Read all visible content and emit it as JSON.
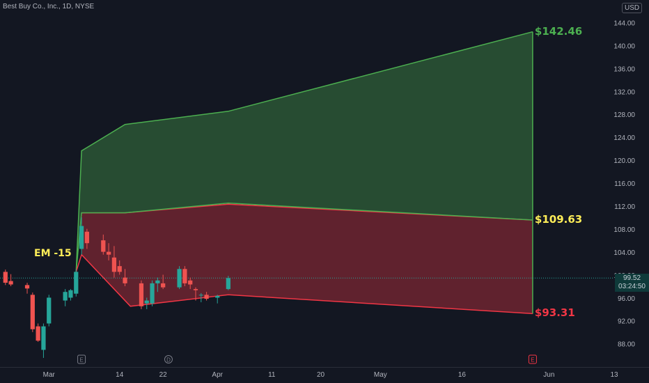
{
  "header": {
    "title": "Best Buy Co., Inc., 1D, NYSE",
    "currency": "USD"
  },
  "current_price": {
    "value": "99.52",
    "countdown": "03:24:50"
  },
  "labels": {
    "em": "EM -15",
    "upper": "$142.46",
    "mid": "$109.63",
    "lower": "$93.31"
  },
  "colors": {
    "green": "#4caf50",
    "red": "#f23645",
    "yellow": "#ffee58",
    "up": "#26a69a",
    "down": "#ef5350"
  },
  "chart_data": {
    "type": "candlestick",
    "y_axis": {
      "ticks": [
        88,
        92,
        96,
        100,
        104,
        108,
        112,
        116,
        120,
        124,
        128,
        132,
        136,
        140,
        144
      ],
      "range": [
        84.5,
        148
      ]
    },
    "x_axis": {
      "ticks": [
        {
          "label": "Mar",
          "date": "2024-03-01"
        },
        {
          "label": "14",
          "date": "2024-03-14"
        },
        {
          "label": "22",
          "date": "2024-03-22"
        },
        {
          "label": "Apr",
          "date": "2024-04-01"
        },
        {
          "label": "11",
          "date": "2024-04-11"
        },
        {
          "label": "20",
          "date": "2024-04-20"
        },
        {
          "label": "May",
          "date": "2024-05-01"
        },
        {
          "label": "16",
          "date": "2024-05-16"
        },
        {
          "label": "Jun",
          "date": "2024-06-01"
        },
        {
          "label": "13",
          "date": "2024-06-13"
        }
      ],
      "range": [
        "2024-02-21",
        "2024-06-13"
      ]
    },
    "candles": [
      {
        "date": "2024-02-22",
        "o": 100.6,
        "h": 101.0,
        "l": 98.3,
        "c": 98.7
      },
      {
        "date": "2024-02-23",
        "o": 99.0,
        "h": 100.2,
        "l": 98.1,
        "c": 98.4
      },
      {
        "date": "2024-02-26",
        "o": 98.3,
        "h": 98.7,
        "l": 96.8,
        "c": 97.7
      },
      {
        "date": "2024-02-27",
        "o": 96.6,
        "h": 97.0,
        "l": 90.1,
        "c": 90.6
      },
      {
        "date": "2024-02-28",
        "o": 91.1,
        "h": 91.6,
        "l": 88.4,
        "c": 88.6
      },
      {
        "date": "2024-02-29",
        "o": 87.0,
        "h": 91.6,
        "l": 85.6,
        "c": 91.1
      },
      {
        "date": "2024-03-01",
        "o": 91.6,
        "h": 96.6,
        "l": 91.1,
        "c": 96.1
      },
      {
        "date": "2024-03-04",
        "o": 95.6,
        "h": 97.6,
        "l": 94.6,
        "c": 97.1
      },
      {
        "date": "2024-03-05",
        "o": 96.1,
        "h": 97.6,
        "l": 95.6,
        "c": 97.4
      },
      {
        "date": "2024-03-06",
        "o": 96.8,
        "h": 101.1,
        "l": 96.3,
        "c": 100.6
      },
      {
        "date": "2024-03-07",
        "o": 104.6,
        "h": 110.1,
        "l": 103.6,
        "c": 108.6
      },
      {
        "date": "2024-03-08",
        "o": 107.6,
        "h": 108.1,
        "l": 104.6,
        "c": 105.6
      },
      {
        "date": "2024-03-11",
        "o": 106.1,
        "h": 107.1,
        "l": 103.6,
        "c": 104.1
      },
      {
        "date": "2024-03-12",
        "o": 104.1,
        "h": 105.6,
        "l": 102.6,
        "c": 103.6
      },
      {
        "date": "2024-03-13",
        "o": 103.1,
        "h": 105.1,
        "l": 99.6,
        "c": 100.6
      },
      {
        "date": "2024-03-14",
        "o": 101.6,
        "h": 102.6,
        "l": 100.1,
        "c": 100.6
      },
      {
        "date": "2024-03-15",
        "o": 99.6,
        "h": 101.1,
        "l": 98.1,
        "c": 98.6
      },
      {
        "date": "2024-03-18",
        "o": 98.6,
        "h": 99.1,
        "l": 94.1,
        "c": 94.6
      },
      {
        "date": "2024-03-19",
        "o": 95.1,
        "h": 96.1,
        "l": 94.1,
        "c": 95.6
      },
      {
        "date": "2024-03-20",
        "o": 95.1,
        "h": 99.1,
        "l": 94.6,
        "c": 98.6
      },
      {
        "date": "2024-03-21",
        "o": 98.6,
        "h": 99.6,
        "l": 97.1,
        "c": 99.1
      },
      {
        "date": "2024-03-22",
        "o": 98.6,
        "h": 100.1,
        "l": 97.6,
        "c": 97.9
      },
      {
        "date": "2024-03-25",
        "o": 97.9,
        "h": 101.6,
        "l": 97.6,
        "c": 101.1
      },
      {
        "date": "2024-03-26",
        "o": 101.1,
        "h": 101.6,
        "l": 98.1,
        "c": 98.6
      },
      {
        "date": "2024-03-27",
        "o": 99.1,
        "h": 99.6,
        "l": 97.6,
        "c": 98.4
      },
      {
        "date": "2024-03-28",
        "o": 97.6,
        "h": 97.9,
        "l": 95.6,
        "c": 97.4
      },
      {
        "date": "2024-03-29",
        "o": 96.6,
        "h": 96.9,
        "l": 95.3,
        "c": 96.6
      },
      {
        "date": "2024-03-30",
        "o": 96.6,
        "h": 97.1,
        "l": 95.6,
        "c": 95.9
      },
      {
        "date": "2024-04-01",
        "o": 96.1,
        "h": 96.6,
        "l": 95.1,
        "c": 96.4
      },
      {
        "date": "2024-04-03",
        "o": 97.6,
        "h": 99.9,
        "l": 97.4,
        "c": 99.52
      }
    ],
    "bands": {
      "upper": [
        {
          "date": "2024-03-06",
          "y": 100.6
        },
        {
          "date": "2024-03-07",
          "y": 121.7
        },
        {
          "date": "2024-03-15",
          "y": 126.3
        },
        {
          "date": "2024-04-03",
          "y": 128.6
        },
        {
          "date": "2024-05-29",
          "y": 142.46
        }
      ],
      "mid": [
        {
          "date": "2024-03-06",
          "y": 100.6
        },
        {
          "date": "2024-03-07",
          "y": 110.9
        },
        {
          "date": "2024-03-15",
          "y": 110.9
        },
        {
          "date": "2024-04-03",
          "y": 112.6
        },
        {
          "date": "2024-05-29",
          "y": 109.63
        }
      ],
      "lower": [
        {
          "date": "2024-03-06",
          "y": 100.6
        },
        {
          "date": "2024-03-07",
          "y": 103.6
        },
        {
          "date": "2024-03-16",
          "y": 94.6
        },
        {
          "date": "2024-04-03",
          "y": 96.6
        },
        {
          "date": "2024-05-29",
          "y": 93.31
        }
      ]
    },
    "red_zone_top": [
      {
        "date": "2024-03-07",
        "y": 110.9
      },
      {
        "date": "2024-03-15",
        "y": 110.9
      },
      {
        "date": "2024-04-03",
        "y": 112.4
      },
      {
        "date": "2024-05-29",
        "y": 109.63
      }
    ],
    "markers": [
      {
        "date": "2024-03-07",
        "symbol": "E",
        "color": "#787b86"
      },
      {
        "date": "2024-03-23",
        "symbol": "D",
        "color": "#787b86"
      },
      {
        "date": "2024-05-29",
        "symbol": "E",
        "color": "#f23645"
      }
    ]
  }
}
